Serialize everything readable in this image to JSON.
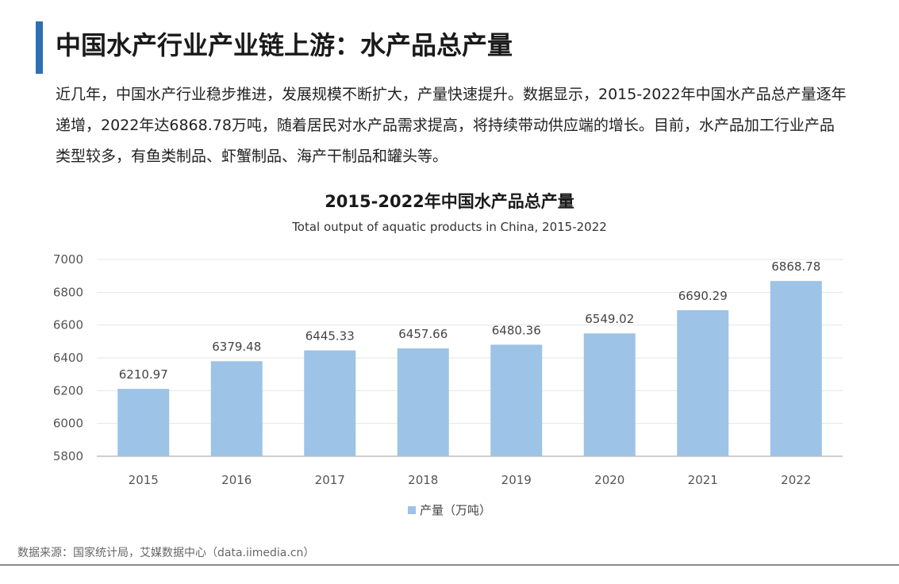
{
  "page": {
    "title": "中国水产行业产业链上游：水产品总产量",
    "intro": "近几年，中国水产行业稳步推进，发展规模不断扩大，产量快速提升。数据显示，2015-2022年中国水产品总产量逐年递增，2022年达6868.78万吨，随着居民对水产品需求提高，将持续带动供应端的增长。目前，水产品加工行业产品类型较多，有鱼类制品、虾蟹制品、海产干制品和罐头等。",
    "source": "数据来源：国家统计局，艾媒数据中心（data.iimedia.cn）"
  },
  "colors": {
    "accent": "#2f6fb3",
    "bar": "#9dc3e6"
  },
  "chart_data": {
    "type": "bar",
    "title": "2015-2022年中国水产品总产量",
    "subtitle": "Total output of aquatic products in China, 2015-2022",
    "categories": [
      "2015",
      "2016",
      "2017",
      "2018",
      "2019",
      "2020",
      "2021",
      "2022"
    ],
    "series": [
      {
        "name": "产量（万吨）",
        "values": [
          6210.97,
          6379.48,
          6445.33,
          6457.66,
          6480.36,
          6549.02,
          6690.29,
          6868.78
        ]
      }
    ],
    "data_labels": [
      "6210.97",
      "6379.48",
      "6445.33",
      "6457.66",
      "6480.36",
      "6549.02",
      "6690.29",
      "6868.78"
    ],
    "ylim": [
      5800,
      7000
    ],
    "yticks": [
      "5800",
      "6000",
      "6200",
      "6400",
      "6600",
      "6800",
      "7000"
    ],
    "grid": true,
    "legend_position": "bottom"
  }
}
